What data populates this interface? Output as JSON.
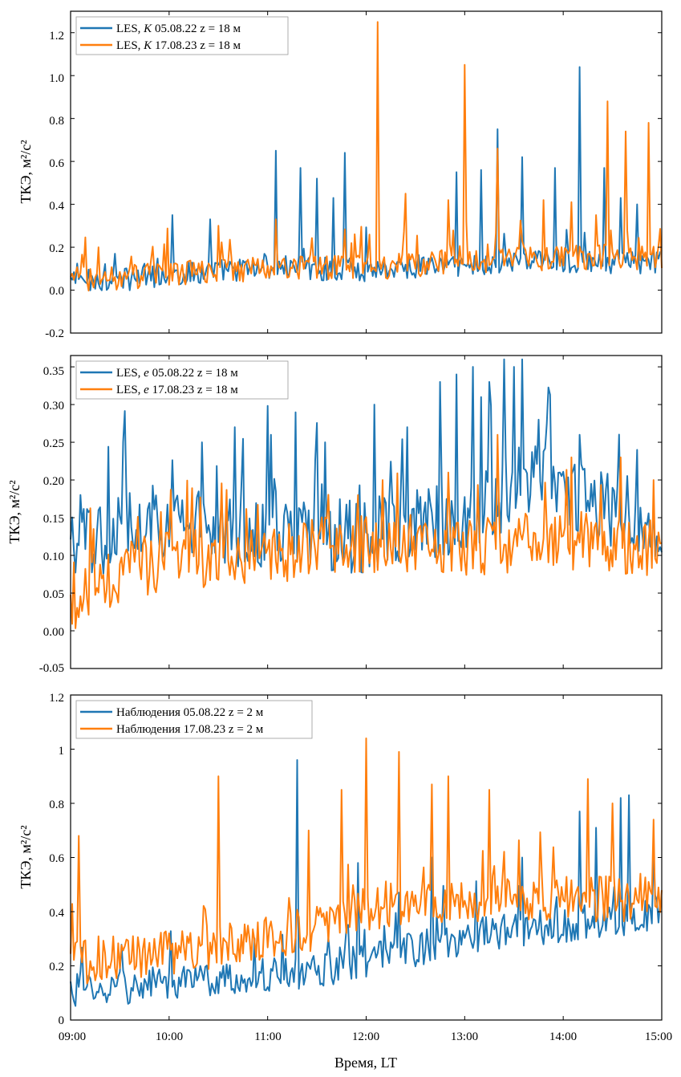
{
  "colors": {
    "series1": "#1f77b4",
    "series2": "#ff7f0e",
    "axis": "#000000",
    "background": "#ffffff"
  },
  "chart_data": [
    {
      "type": "line",
      "title": "",
      "xlabel": "",
      "ylabel": "ТКЭ, м²/с²",
      "xlim": [
        "09:00",
        "15:00"
      ],
      "ylim": [
        -0.2,
        1.3
      ],
      "yticks": [
        "-0.2",
        "0.0",
        "0.2",
        "0.4",
        "0.6",
        "0.8",
        "1.0",
        "1.2"
      ],
      "legend_position": "top-left",
      "series": [
        {
          "name": "LES, K 05.08.22 z = 18 м",
          "legend_parts": [
            "LES, ",
            "K",
            " 05.08.22 z = 18 м"
          ],
          "baseline": [
            0.04,
            0.04,
            0.05,
            0.06,
            0.08,
            0.09,
            0.1,
            0.1,
            0.09,
            0.09,
            0.1,
            0.11,
            0.11,
            0.12,
            0.13,
            0.13,
            0.12,
            0.12,
            0.13
          ],
          "noise": 0.055,
          "peaks": [
            [
              "10:02",
              0.35
            ],
            [
              "10:25",
              0.33
            ],
            [
              "11:05",
              0.65
            ],
            [
              "11:20",
              0.57
            ],
            [
              "11:30",
              0.52
            ],
            [
              "11:40",
              0.43
            ],
            [
              "11:47",
              0.64
            ],
            [
              "12:55",
              0.55
            ],
            [
              "13:10",
              0.56
            ],
            [
              "13:20",
              0.75
            ],
            [
              "13:35",
              0.62
            ],
            [
              "13:55",
              0.57
            ],
            [
              "14:10",
              1.04
            ],
            [
              "14:25",
              0.57
            ],
            [
              "14:35",
              0.43
            ],
            [
              "14:45",
              0.4
            ]
          ]
        },
        {
          "name": "LES, K 17.08.23 z = 18 м",
          "legend_parts": [
            "LES, ",
            "K",
            " 17.08.23 z = 18 м"
          ],
          "baseline": [
            0.04,
            0.05,
            0.06,
            0.07,
            0.08,
            0.09,
            0.1,
            0.1,
            0.1,
            0.1,
            0.11,
            0.12,
            0.13,
            0.14,
            0.14,
            0.15,
            0.15,
            0.15,
            0.15
          ],
          "noise": 0.06,
          "peaks": [
            [
              "09:17",
              0.2
            ],
            [
              "10:30",
              0.3
            ],
            [
              "11:05",
              0.33
            ],
            [
              "12:07",
              1.25
            ],
            [
              "12:24",
              0.45
            ],
            [
              "12:50",
              0.42
            ],
            [
              "13:00",
              1.05
            ],
            [
              "13:20",
              0.66
            ],
            [
              "13:48",
              0.42
            ],
            [
              "14:05",
              0.41
            ],
            [
              "14:20",
              0.35
            ],
            [
              "14:27",
              0.88
            ],
            [
              "14:38",
              0.74
            ],
            [
              "14:52",
              0.78
            ]
          ]
        }
      ]
    },
    {
      "type": "line",
      "title": "",
      "xlabel": "",
      "ylabel": "ТКЭ, м²/с²",
      "xlim": [
        "09:00",
        "15:00"
      ],
      "ylim": [
        -0.05,
        0.365
      ],
      "yticks": [
        "-0.05",
        "0.00",
        "0.05",
        "0.10",
        "0.15",
        "0.20",
        "0.25",
        "0.30",
        "0.35"
      ],
      "legend_position": "top-left",
      "series": [
        {
          "name": "LES, e 05.08.22 z = 18 м",
          "legend_parts": [
            "LES, ",
            "e",
            " 05.08.22 z = 18 м"
          ],
          "baseline": [
            0.1,
            0.12,
            0.14,
            0.14,
            0.13,
            0.12,
            0.13,
            0.13,
            0.12,
            0.12,
            0.13,
            0.14,
            0.15,
            0.17,
            0.2,
            0.19,
            0.16,
            0.15,
            0.14
          ],
          "noise": 0.05,
          "peaks": [
            [
              "09:32",
              0.25
            ],
            [
              "10:20",
              0.25
            ],
            [
              "10:40",
              0.27
            ],
            [
              "11:02",
              0.26
            ],
            [
              "11:35",
              0.25
            ],
            [
              "12:05",
              0.3
            ],
            [
              "12:25",
              0.27
            ],
            [
              "12:45",
              0.33
            ],
            [
              "12:55",
              0.34
            ],
            [
              "13:05",
              0.35
            ],
            [
              "13:10",
              0.31
            ],
            [
              "13:15",
              0.33
            ],
            [
              "13:24",
              0.36
            ],
            [
              "13:30",
              0.35
            ],
            [
              "13:35",
              0.36
            ],
            [
              "13:45",
              0.28
            ],
            [
              "14:10",
              0.26
            ],
            [
              "14:45",
              0.24
            ]
          ]
        },
        {
          "name": "LES, e 17.08.23 z = 18 м",
          "legend_parts": [
            "LES, ",
            "e",
            " 17.08.23 z = 18 м"
          ],
          "baseline": [
            0.03,
            0.06,
            0.08,
            0.09,
            0.09,
            0.09,
            0.1,
            0.1,
            0.11,
            0.11,
            0.11,
            0.11,
            0.11,
            0.11,
            0.12,
            0.12,
            0.11,
            0.11,
            0.1
          ],
          "noise": 0.04,
          "peaks": [
            [
              "11:55",
              0.18
            ],
            [
              "12:10",
              0.2
            ],
            [
              "12:50",
              0.21
            ],
            [
              "13:20",
              0.26
            ],
            [
              "14:05",
              0.23
            ],
            [
              "14:35",
              0.23
            ],
            [
              "14:55",
              0.2
            ]
          ]
        }
      ]
    },
    {
      "type": "line",
      "title": "",
      "xlabel": "Время, LT",
      "ylabel": "ТКЭ, м²/с²",
      "xlim": [
        "09:00",
        "15:00"
      ],
      "xticks": [
        "09:00",
        "10:00",
        "11:00",
        "12:00",
        "13:00",
        "14:00",
        "15:00"
      ],
      "ylim": [
        0,
        1.2
      ],
      "yticks": [
        "0",
        "0.2",
        "0.4",
        "0.6",
        "0.8",
        "1",
        "1.2"
      ],
      "legend_position": "top-left",
      "series": [
        {
          "name": "Наблюдения 05.08.22 z = 2 м",
          "legend_parts": [
            "Наблюдения 05.08.22 z = 2 м",
            "",
            ""
          ],
          "baseline": [
            0.11,
            0.11,
            0.12,
            0.13,
            0.14,
            0.15,
            0.16,
            0.17,
            0.19,
            0.21,
            0.24,
            0.27,
            0.3,
            0.32,
            0.33,
            0.34,
            0.36,
            0.37,
            0.38
          ],
          "noise": 0.065,
          "peaks": [
            [
              "11:18",
              0.96
            ],
            [
              "11:55",
              0.58
            ],
            [
              "12:40",
              0.6
            ],
            [
              "13:35",
              0.6
            ],
            [
              "14:10",
              0.77
            ],
            [
              "14:20",
              0.71
            ],
            [
              "14:35",
              0.82
            ],
            [
              "14:40",
              0.83
            ],
            [
              "14:55",
              0.62
            ]
          ]
        },
        {
          "name": "Наблюдения 17.08.23 z = 2 м",
          "legend_parts": [
            "Наблюдения 17.08.23 z = 2 м",
            "",
            ""
          ],
          "baseline": [
            0.2,
            0.22,
            0.23,
            0.24,
            0.26,
            0.28,
            0.3,
            0.32,
            0.35,
            0.4,
            0.42,
            0.43,
            0.44,
            0.44,
            0.44,
            0.44,
            0.44,
            0.44,
            0.44
          ],
          "noise": 0.085,
          "peaks": [
            [
              "09:05",
              0.68
            ],
            [
              "10:30",
              0.9
            ],
            [
              "11:25",
              0.7
            ],
            [
              "11:45",
              0.85
            ],
            [
              "12:00",
              1.04
            ],
            [
              "12:20",
              0.99
            ],
            [
              "12:40",
              0.87
            ],
            [
              "12:50",
              0.9
            ],
            [
              "13:15",
              0.85
            ],
            [
              "14:15",
              0.89
            ],
            [
              "14:30",
              0.8
            ],
            [
              "14:55",
              0.74
            ]
          ]
        }
      ]
    }
  ]
}
